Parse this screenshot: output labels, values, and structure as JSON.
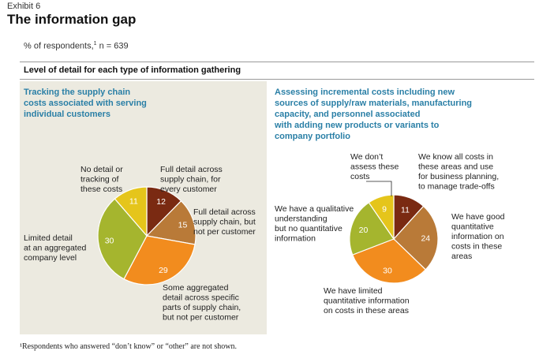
{
  "header": {
    "exhibit": "Exhibit 6",
    "title": "The information gap",
    "subtitle_prefix": "% of respondents,",
    "subtitle_sup": "1",
    "subtitle_suffix": " n = 639",
    "section_label": "Level of detail for each type of information gathering"
  },
  "colors": {
    "panel_bg": "#eceae0",
    "title_blue": "#2a7fa6",
    "dark_red": "#7a2a12",
    "brown": "#b97a38",
    "orange": "#f28c1e",
    "olive": "#a5b52e",
    "yellow": "#e5c51b"
  },
  "chart_data": [
    {
      "type": "pie",
      "title": "Tracking the supply chain costs associated with serving individual customers",
      "title_lines": [
        "Tracking the supply chain",
        "costs associated with serving",
        "individual customers"
      ],
      "slices": [
        {
          "value": 12,
          "label": "Full detail across supply chain, for every customer",
          "label_lines": [
            "Full detail across",
            "supply chain, for",
            "every customer"
          ],
          "color": "#7a2a12"
        },
        {
          "value": 15,
          "label": "Full detail across supply chain, but not per customer",
          "label_lines": [
            "Full detail across",
            "supply chain, but",
            "not per customer"
          ],
          "color": "#b97a38"
        },
        {
          "value": 29,
          "label": "Some aggregated detail across specific parts of supply chain, but not per customer",
          "label_lines": [
            "Some aggregated",
            "detail across specific",
            "parts of supply chain,",
            "but not per customer"
          ],
          "color": "#f28c1e"
        },
        {
          "value": 30,
          "label": "Limited detail at an aggregated company level",
          "label_lines": [
            "Limited detail",
            "at an aggregated",
            "company level"
          ],
          "color": "#a5b52e"
        },
        {
          "value": 11,
          "label": "No detail or tracking of these costs",
          "label_lines": [
            "No detail or",
            "tracking of",
            "these costs"
          ],
          "color": "#e5c51b"
        }
      ]
    },
    {
      "type": "pie",
      "title": "Assessing incremental costs including new sources of supply/raw materials, manufacturing capacity, and personnel associated with adding new products or variants to company portfolio",
      "title_lines": [
        "Assessing incremental costs including new",
        "sources of supply/raw materials, manufacturing",
        "capacity, and personnel associated",
        "with adding new products or variants to",
        "company portfolio"
      ],
      "slices": [
        {
          "value": 11,
          "label": "We know all costs in these areas and use for business planning, to manage trade-offs",
          "label_lines": [
            "We know all costs in",
            "these areas and use",
            "for business planning,",
            "to manage trade-offs"
          ],
          "color": "#7a2a12"
        },
        {
          "value": 24,
          "label": "We have good quantitative information on costs in these areas",
          "label_lines": [
            "We have good",
            "quantitative",
            "information on",
            "costs in these",
            "areas"
          ],
          "color": "#b97a38"
        },
        {
          "value": 30,
          "label": "We have limited quantitative information on costs in these areas",
          "label_lines": [
            "We have limited",
            "quantitative information",
            "on costs in these areas"
          ],
          "color": "#f28c1e"
        },
        {
          "value": 20,
          "label": "We have a qualitative understanding but no quantitative information",
          "label_lines": [
            "We have a qualitative",
            "understanding",
            "but no quantitative",
            "information"
          ],
          "color": "#a5b52e"
        },
        {
          "value": 9,
          "label": "We don't assess these costs",
          "label_lines": [
            "We don’t",
            "assess these",
            "costs"
          ],
          "color": "#e5c51b"
        }
      ]
    }
  ],
  "footnote": "¹Respondents who answered “don’t know” or “other” are not shown."
}
